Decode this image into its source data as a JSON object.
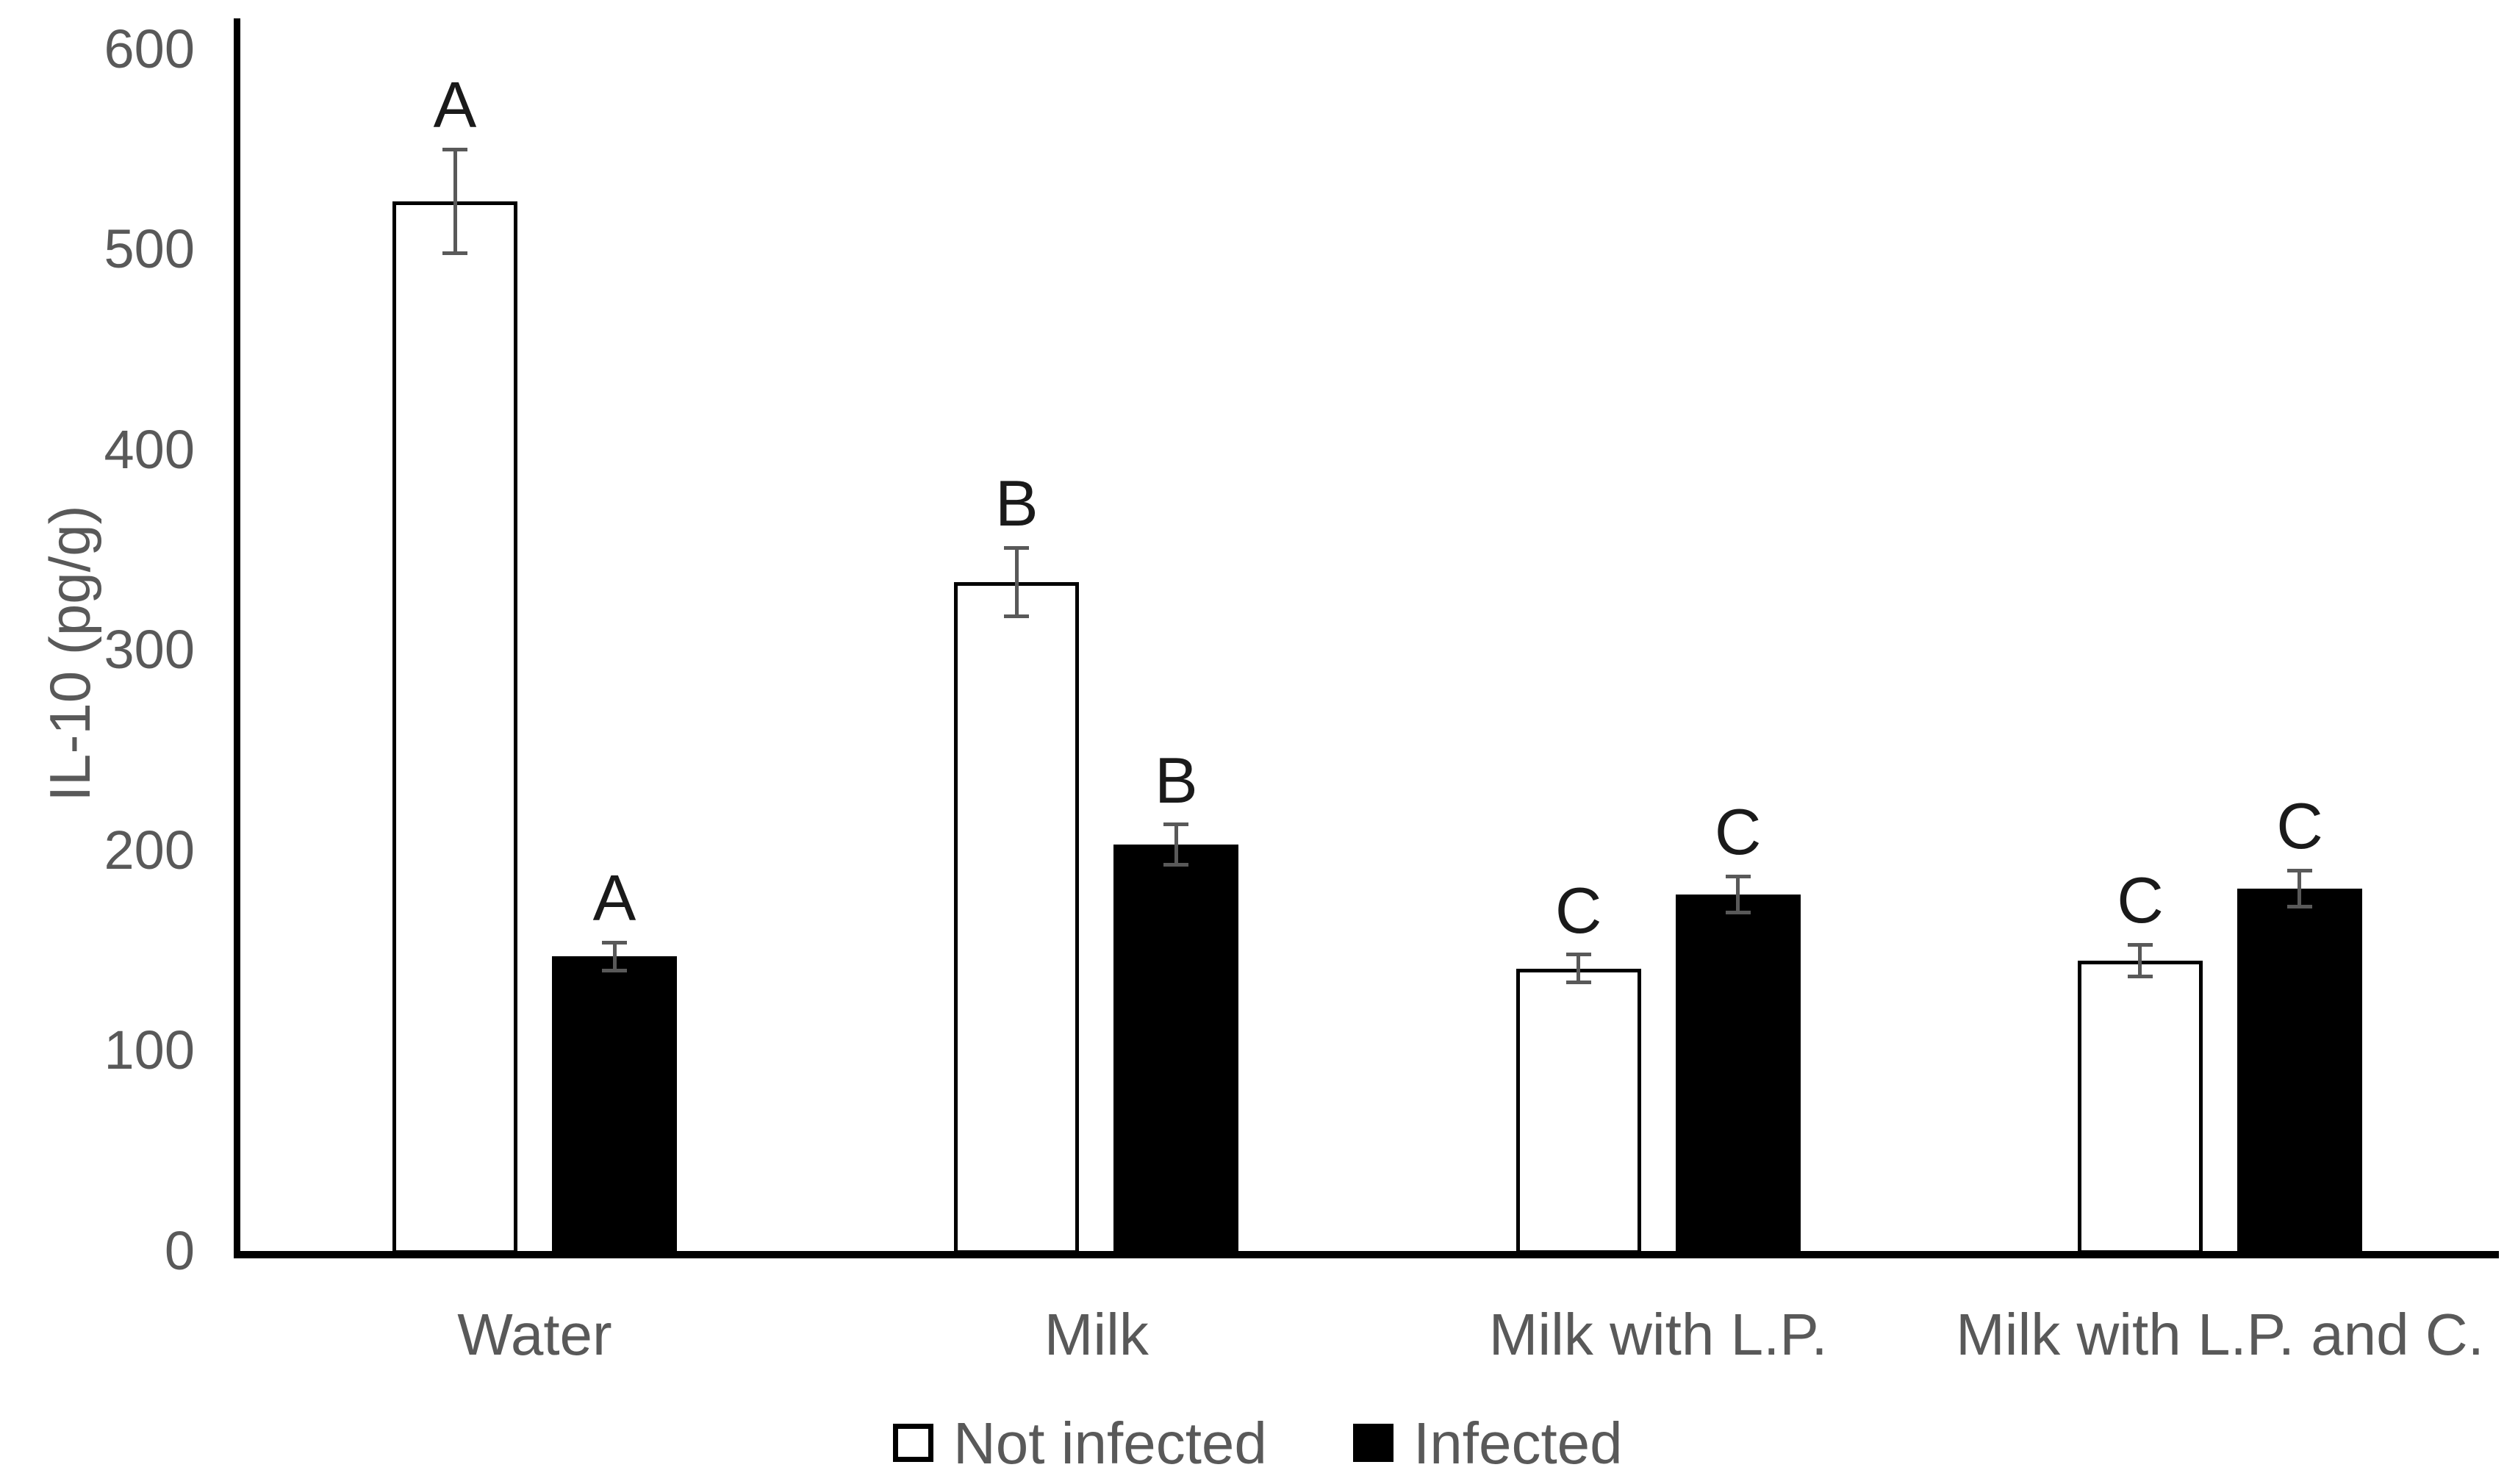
{
  "chart_data": {
    "type": "bar",
    "title": "",
    "xlabel": "",
    "ylabel": "IL-10 (pg/g)",
    "ylim": [
      0,
      600
    ],
    "yticks": [
      600,
      500,
      400,
      300,
      200,
      100,
      0
    ],
    "grid": false,
    "legend_position": "bottom-center",
    "categories": [
      "Water",
      "Milk",
      "Milk with L.P.",
      "Milk with L.P. and C."
    ],
    "series": [
      {
        "name": "Not infected",
        "fill": "#ffffff",
        "border": "#000000",
        "values": [
          524,
          334,
          141,
          145
        ],
        "errors": [
          26,
          17,
          7,
          8
        ],
        "sig_letters": [
          "A",
          "B",
          "C",
          "C"
        ]
      },
      {
        "name": "Infected",
        "fill": "#000000",
        "border": "#000000",
        "values": [
          147,
          203,
          178,
          181
        ],
        "errors": [
          7,
          10,
          9,
          9
        ],
        "sig_letters": [
          "A",
          "B",
          "C",
          "C"
        ]
      }
    ],
    "error_bar_color": "#595959",
    "axis_color": "#000000",
    "tick_label_color": "#595959",
    "sig_letter_color": "#1a1a1a"
  }
}
